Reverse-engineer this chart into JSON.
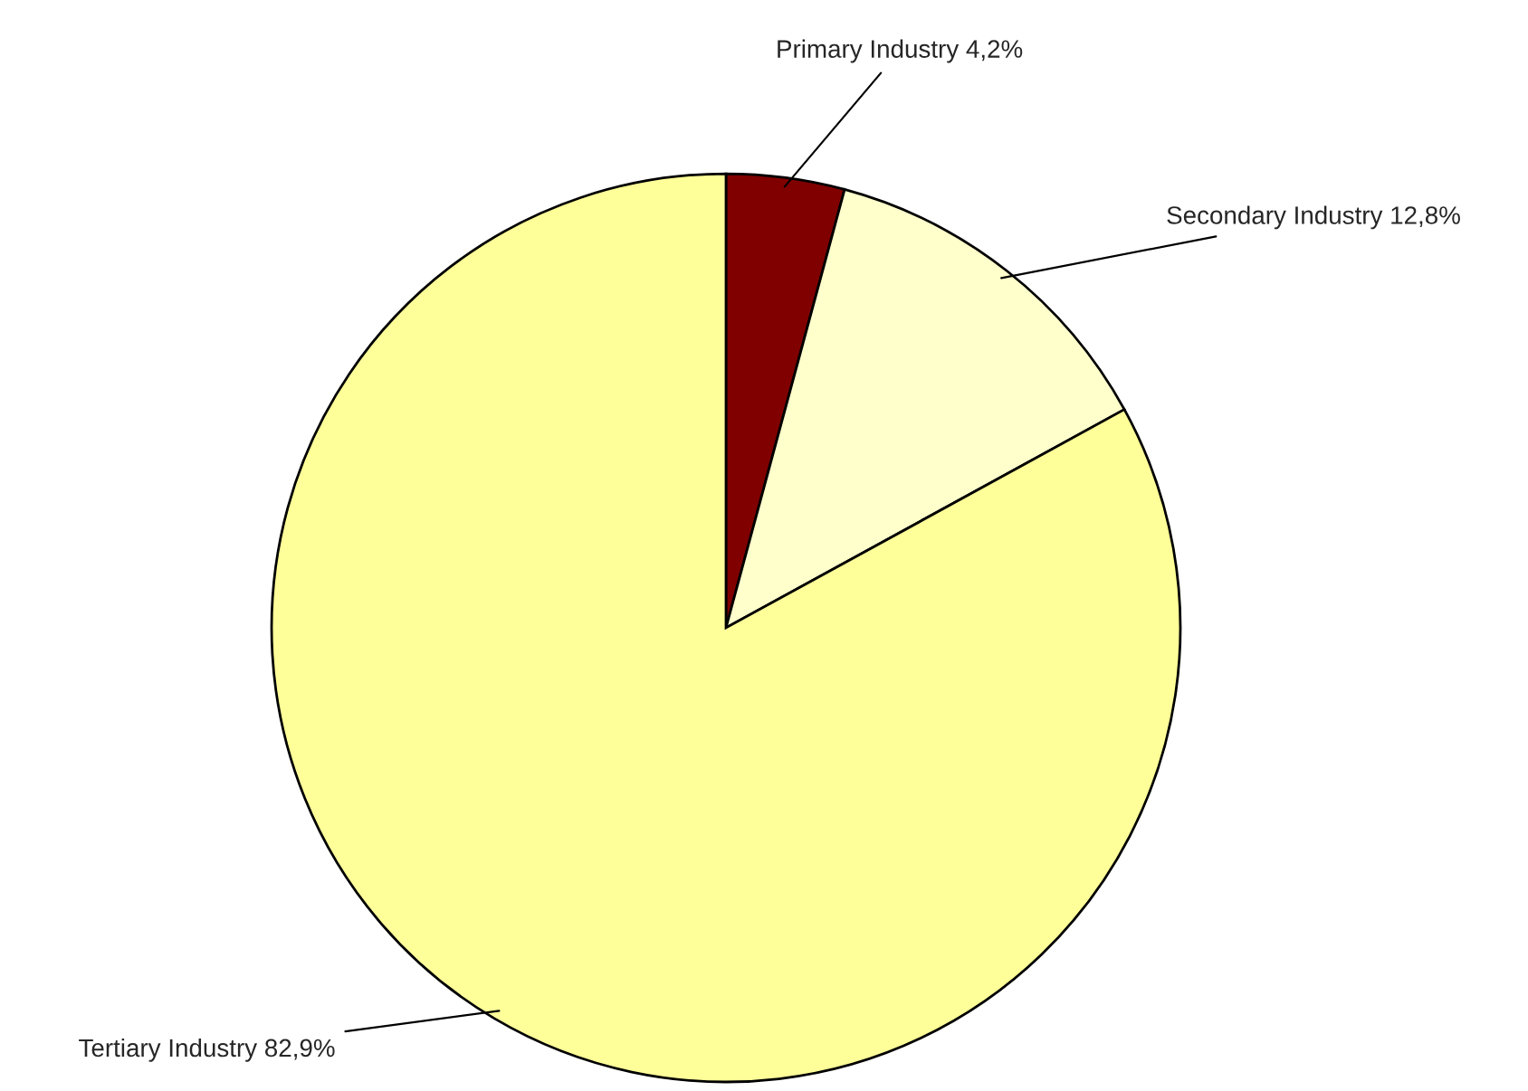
{
  "chart_data": {
    "type": "pie",
    "categories": [
      "Primary Industry",
      "Secondary Industry",
      "Tertiary Industry"
    ],
    "values": [
      4.2,
      12.8,
      82.9
    ],
    "value_labels": [
      "4,2%",
      "12,8%",
      "82,9%"
    ],
    "colors": [
      "#800000",
      "#ffffcc",
      "#ffff99"
    ],
    "legend": false
  }
}
